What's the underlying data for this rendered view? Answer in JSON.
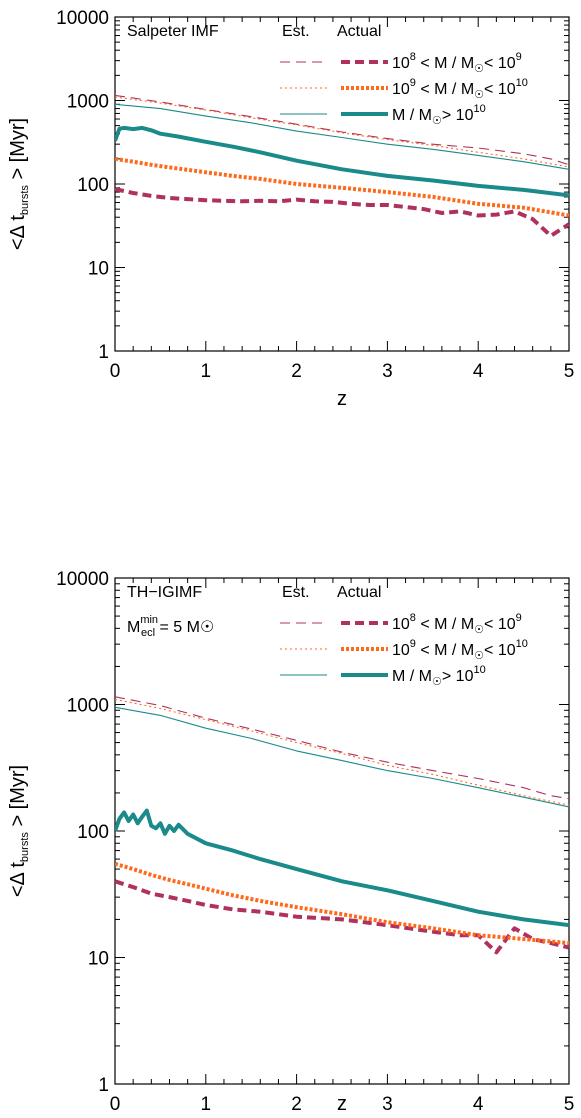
{
  "chart_data": [
    {
      "type": "line",
      "title": "Salpeter IMF",
      "subtitle": "",
      "xlabel": "z",
      "ylabel_parts": {
        "main": "<Δ t",
        "sub": "bursts",
        "tail": " > [Myr]"
      },
      "xlim": [
        0,
        5
      ],
      "ylim": [
        1,
        10000
      ],
      "yscale": "log",
      "xticks": [
        0,
        1,
        2,
        3,
        4,
        5
      ],
      "yticks": [
        1,
        10,
        100,
        1000,
        10000
      ],
      "legend": {
        "placement": "top-right",
        "col_est": "Est.",
        "col_actual": "Actual"
      },
      "series": [
        {
          "name": "10^8 < M / M☉ < 10^9",
          "group": "low",
          "kind": "est",
          "color": "#b03060",
          "x": [
            0,
            0.5,
            1,
            1.5,
            2,
            2.5,
            3,
            3.5,
            4,
            4.5,
            4.8,
            5
          ],
          "y": [
            1150,
            960,
            780,
            640,
            520,
            420,
            350,
            300,
            270,
            230,
            200,
            170
          ]
        },
        {
          "name": "10^8 < M / M☉ < 10^9",
          "group": "low",
          "kind": "actual",
          "color": "#b03060",
          "x": [
            0,
            0.2,
            0.4,
            0.6,
            0.8,
            1,
            1.2,
            1.4,
            1.6,
            1.8,
            2,
            2.2,
            2.4,
            2.6,
            2.8,
            3,
            3.2,
            3.4,
            3.6,
            3.8,
            4,
            4.2,
            4.4,
            4.6,
            4.8,
            5
          ],
          "y": [
            87,
            78,
            72,
            68,
            66,
            64,
            63,
            62,
            63,
            62,
            65,
            62,
            61,
            58,
            56,
            56,
            53,
            50,
            45,
            47,
            42,
            43,
            47,
            38,
            24,
            33
          ]
        },
        {
          "name": "10^9 < M / M☉ < 10^10",
          "group": "mid",
          "kind": "est",
          "color": "#ff6a1a",
          "x": [
            0,
            0.5,
            1,
            1.5,
            2,
            2.5,
            3,
            3.5,
            4,
            4.5,
            5
          ],
          "y": [
            1100,
            930,
            770,
            620,
            510,
            410,
            340,
            290,
            240,
            200,
            160
          ]
        },
        {
          "name": "10^9 < M / M☉ < 10^10",
          "group": "mid",
          "kind": "actual",
          "color": "#ff6a1a",
          "x": [
            0,
            0.2,
            0.4,
            0.6,
            0.8,
            1,
            1.3,
            1.6,
            2,
            2.5,
            3,
            3.5,
            4,
            4.5,
            5
          ],
          "y": [
            200,
            185,
            170,
            158,
            148,
            138,
            125,
            115,
            100,
            90,
            80,
            70,
            58,
            52,
            42
          ]
        },
        {
          "name": "M / M☉ > 10^10",
          "group": "high",
          "kind": "est",
          "color": "#1a8a8a",
          "x": [
            0,
            0.5,
            1,
            1.5,
            2,
            2.5,
            3,
            3.5,
            4,
            4.5,
            5
          ],
          "y": [
            900,
            800,
            650,
            540,
            430,
            360,
            300,
            260,
            220,
            185,
            150
          ]
        },
        {
          "name": "M / M☉ > 10^10",
          "group": "high",
          "kind": "actual",
          "color": "#1a8a8a",
          "x": [
            0,
            0.05,
            0.1,
            0.2,
            0.3,
            0.4,
            0.5,
            0.7,
            1,
            1.3,
            1.6,
            2,
            2.5,
            3,
            3.5,
            4,
            4.5,
            5
          ],
          "y": [
            330,
            460,
            470,
            455,
            470,
            440,
            400,
            370,
            320,
            280,
            240,
            190,
            150,
            125,
            110,
            95,
            85,
            73
          ]
        }
      ]
    },
    {
      "type": "line",
      "title": "TH−IGIMF",
      "subtitle_parts": {
        "main": "M",
        "sup": "min",
        "sub": "ecl",
        "tail": " = 5 M☉"
      },
      "xlabel": "z",
      "ylabel_parts": {
        "main": "<Δ t",
        "sub": "bursts",
        "tail": " > [Myr]"
      },
      "xlim": [
        0,
        5
      ],
      "ylim": [
        1,
        10000
      ],
      "yscale": "log",
      "xticks": [
        0,
        1,
        2,
        3,
        4,
        5
      ],
      "yticks": [
        1,
        10,
        100,
        1000,
        10000
      ],
      "legend": {
        "placement": "top-right",
        "col_est": "Est.",
        "col_actual": "Actual"
      },
      "series": [
        {
          "name": "10^8 < M / M☉ < 10^9",
          "group": "low",
          "kind": "est",
          "color": "#b03060",
          "x": [
            0,
            0.5,
            1,
            1.5,
            2,
            2.5,
            3,
            3.5,
            4,
            4.5,
            4.8,
            5
          ],
          "y": [
            1150,
            980,
            780,
            640,
            520,
            420,
            350,
            300,
            260,
            220,
            190,
            180
          ]
        },
        {
          "name": "10^8 < M / M☉ < 10^9",
          "group": "low",
          "kind": "actual",
          "color": "#b03060",
          "x": [
            0,
            0.2,
            0.4,
            0.6,
            0.8,
            1,
            1.3,
            1.6,
            2,
            2.5,
            3,
            3.5,
            3.8,
            4,
            4.2,
            4.4,
            4.6,
            4.8,
            5
          ],
          "y": [
            40,
            36,
            32,
            30,
            28,
            26,
            24,
            23,
            21,
            20,
            18,
            16,
            15,
            15,
            11,
            17,
            14,
            13,
            12
          ]
        },
        {
          "name": "10^9 < M / M☉ < 10^10",
          "group": "mid",
          "kind": "est",
          "color": "#ff6a1a",
          "x": [
            0,
            0.5,
            1,
            1.5,
            2,
            2.5,
            3,
            3.5,
            4,
            4.5,
            5
          ],
          "y": [
            1100,
            930,
            760,
            620,
            500,
            410,
            330,
            280,
            230,
            190,
            160
          ]
        },
        {
          "name": "10^9 < M / M☉ < 10^10",
          "group": "mid",
          "kind": "actual",
          "color": "#ff6a1a",
          "x": [
            0,
            0.2,
            0.4,
            0.6,
            0.8,
            1,
            1.3,
            1.6,
            2,
            2.5,
            3,
            3.5,
            4,
            4.5,
            5
          ],
          "y": [
            55,
            50,
            45,
            41,
            38,
            35,
            31,
            28,
            25,
            22,
            19,
            17,
            15,
            14,
            13
          ]
        },
        {
          "name": "M / M☉ > 10^10",
          "group": "high",
          "kind": "est",
          "color": "#1a8a8a",
          "x": [
            0,
            0.5,
            1,
            1.5,
            2,
            2.5,
            3,
            3.5,
            4,
            4.5,
            5
          ],
          "y": [
            950,
            820,
            650,
            540,
            430,
            360,
            300,
            260,
            220,
            185,
            155
          ]
        },
        {
          "name": "M / M☉ > 10^10",
          "group": "high",
          "kind": "actual",
          "color": "#1a8a8a",
          "x": [
            0,
            0.05,
            0.1,
            0.15,
            0.2,
            0.25,
            0.3,
            0.35,
            0.4,
            0.45,
            0.5,
            0.55,
            0.6,
            0.65,
            0.7,
            0.8,
            1,
            1.3,
            1.6,
            2,
            2.5,
            3,
            3.5,
            4,
            4.5,
            5
          ],
          "y": [
            100,
            125,
            140,
            120,
            135,
            115,
            130,
            145,
            110,
            105,
            115,
            95,
            110,
            100,
            112,
            95,
            80,
            70,
            60,
            50,
            40,
            34,
            28,
            23,
            20,
            18
          ]
        }
      ]
    }
  ],
  "legend_labels": {
    "low": {
      "a": "10",
      "a_sup": "8",
      "b": "  < M / M",
      "c": "< 10",
      "c_sup": "9"
    },
    "mid": {
      "a": "10",
      "a_sup": "9",
      "b": "  < M / M",
      "c": "< 10",
      "c_sup": "10"
    },
    "high": {
      "a": "M / M",
      "c": "> 10",
      "c_sup": "10"
    }
  }
}
